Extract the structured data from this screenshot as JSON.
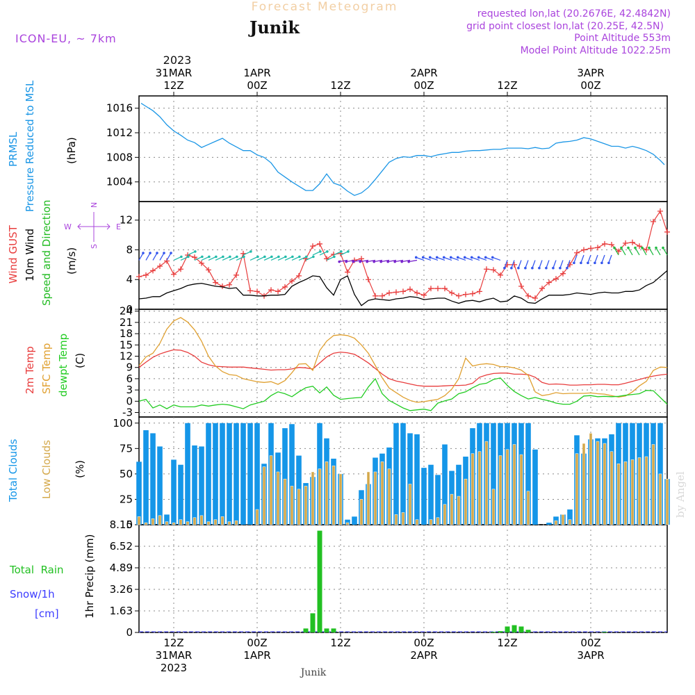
{
  "header": {
    "supertitle": "Forecast Meteogram",
    "location": "Junik",
    "model": "ICON-EU,  ~ 7km",
    "requested": "requested lon,lat (20.2676E, 42.4842N)",
    "grid": "grid point closest lon,lat (20.25E, 42.5N)",
    "point_alt": "Point Altitude 553m",
    "model_alt": "Model Point Altitude 1022.25m",
    "watermark": "by Angel",
    "footer": "Junik"
  },
  "colors": {
    "pressure": "#1a96e6",
    "gust": "#e83c3c",
    "wind": "#000000",
    "dir_label": "#22bb22",
    "t2m": "#e83c3c",
    "sfc": "#e0a030",
    "dew": "#22cc22",
    "total_clouds": "#1596e8",
    "low_clouds": "#d4a84a",
    "rain": "#22c022",
    "snow": "#3b3bff",
    "axes_lbl": "#aa44dd"
  },
  "time_axis": {
    "top_year": "2023",
    "labels": [
      {
        "hour": 12,
        "l1": "31MAR",
        "l2": "12Z"
      },
      {
        "hour": 24,
        "l1": "1APR",
        "l2": "00Z"
      },
      {
        "hour": 36,
        "l1": "",
        "l2": "12Z"
      },
      {
        "hour": 48,
        "l1": "2APR",
        "l2": "00Z"
      },
      {
        "hour": 60,
        "l1": "",
        "l2": "12Z"
      },
      {
        "hour": 72,
        "l1": "3APR",
        "l2": "00Z"
      }
    ],
    "bottom": [
      {
        "hour": 12,
        "l1": "12Z",
        "l2": "31MAR",
        "l3": "2023"
      },
      {
        "hour": 24,
        "l1": "00Z",
        "l2": "1APR",
        "l3": ""
      },
      {
        "hour": 36,
        "l1": "12Z",
        "l2": "",
        "l3": ""
      },
      {
        "hour": 48,
        "l1": "00Z",
        "l2": "2APR",
        "l3": ""
      },
      {
        "hour": 60,
        "l1": "12Z",
        "l2": "",
        "l3": ""
      },
      {
        "hour": 72,
        "l1": "00Z",
        "l2": "3APR",
        "l3": ""
      }
    ],
    "start_hour": 7,
    "end_hour": 83
  },
  "panel_labels": {
    "p1": [
      "PRMSL",
      "Pressure Reduced to MSL",
      "(hPa)"
    ],
    "p2": [
      "Wind GUST",
      "10m Wind",
      "Speed and Direction",
      "(m/s)"
    ],
    "p2_compass": [
      "N",
      "E",
      "S",
      "W"
    ],
    "p3": [
      "2m Temp",
      "SFC Temp",
      "dewpt Temp",
      "(C)"
    ],
    "p4": [
      "Total Clouds",
      "Low Clouds",
      "(%)"
    ],
    "p5": [
      "Total  Rain",
      "Snow/1h",
      "[cm]",
      "1hr Precip (mm)"
    ]
  },
  "chart_data": [
    {
      "type": "line",
      "title": "PRMSL Pressure Reduced to MSL",
      "ylabel": "hPa",
      "ylim": [
        1000.8,
        1018
      ],
      "yticks": [
        1004,
        1008,
        1012,
        1016
      ],
      "x": [
        7.3,
        8,
        9,
        10,
        11,
        12,
        13,
        14,
        15,
        16,
        17,
        18,
        19,
        20,
        21,
        22,
        23,
        24,
        25,
        26,
        27,
        28,
        29,
        30,
        31,
        32,
        33,
        34,
        35,
        36,
        37,
        38,
        39,
        40,
        41,
        42,
        43,
        44,
        45,
        46,
        47,
        48,
        49,
        50,
        51,
        52,
        53,
        54,
        55,
        56,
        57,
        58,
        59,
        60,
        61,
        62,
        63,
        64,
        65,
        66,
        67,
        68,
        69,
        70,
        71,
        72,
        73,
        74,
        75,
        76,
        77,
        78,
        79,
        80,
        81,
        82,
        82.6
      ],
      "values": [
        1016.8,
        1016.3,
        1015.6,
        1014.6,
        1013.3,
        1012.3,
        1011.6,
        1010.8,
        1010.4,
        1009.6,
        1010.1,
        1010.6,
        1011.1,
        1010.3,
        1009.7,
        1009.1,
        1009.1,
        1008.4,
        1008.0,
        1007.1,
        1005.6,
        1004.8,
        1004.0,
        1003.3,
        1002.6,
        1002.6,
        1003.7,
        1005.3,
        1003.8,
        1003.4,
        1002.5,
        1001.8,
        1002.2,
        1003.1,
        1004.4,
        1005.8,
        1007.2,
        1007.8,
        1008.1,
        1008.0,
        1008.3,
        1008.3,
        1008.1,
        1008.4,
        1008.6,
        1008.8,
        1008.8,
        1009.0,
        1009.1,
        1009.1,
        1009.2,
        1009.3,
        1009.3,
        1009.5,
        1009.5,
        1009.5,
        1009.4,
        1009.6,
        1009.4,
        1009.5,
        1010.3,
        1010.5,
        1010.6,
        1010.8,
        1011.2,
        1011.0,
        1010.6,
        1010.2,
        1009.8,
        1009.8,
        1009.5,
        1009.8,
        1009.5,
        1009.1,
        1008.5,
        1007.5,
        1006.8
      ]
    },
    {
      "type": "line",
      "title": "Wind GUST / 10m Wind Speed and Direction",
      "ylabel": "m/s",
      "ylim": [
        0,
        14.5
      ],
      "yticks": [
        0,
        4,
        8,
        12
      ],
      "x": [
        7,
        8,
        9,
        10,
        11,
        12,
        13,
        14,
        15,
        16,
        17,
        18,
        19,
        20,
        21,
        22,
        23,
        24,
        25,
        26,
        27,
        28,
        29,
        30,
        31,
        32,
        33,
        34,
        35,
        36,
        37,
        38,
        39,
        40,
        41,
        42,
        43,
        44,
        45,
        46,
        47,
        48,
        49,
        50,
        51,
        52,
        53,
        54,
        55,
        56,
        57,
        58,
        59,
        60,
        61,
        62,
        63,
        64,
        65,
        66,
        67,
        68,
        69,
        70,
        71,
        72,
        73,
        74,
        75,
        76,
        77,
        78,
        79,
        80,
        81,
        82,
        83
      ],
      "series": [
        {
          "name": "Wind GUST",
          "values": [
            4.4,
            4.6,
            5.2,
            5.8,
            6.5,
            4.7,
            5.4,
            7.3,
            7.0,
            6.2,
            5.3,
            3.6,
            3.1,
            3.3,
            4.6,
            7.5,
            2.5,
            2.4,
            1.8,
            2.6,
            2.4,
            3.0,
            3.8,
            4.5,
            6.8,
            8.5,
            8.8,
            6.8,
            7.4,
            7.5,
            5.0,
            6.6,
            6.8,
            4.0,
            1.8,
            1.8,
            2.2,
            2.3,
            2.4,
            2.7,
            2.2,
            1.9,
            2.8,
            2.8,
            2.8,
            2.2,
            1.8,
            2.0,
            2.1,
            2.4,
            5.4,
            5.3,
            4.6,
            6.0,
            6.0,
            3.1,
            1.8,
            1.5,
            2.8,
            3.6,
            4.1,
            4.8,
            6.0,
            7.6,
            8.0,
            8.2,
            8.3,
            8.8,
            8.7,
            7.8,
            8.9,
            9.0,
            8.5,
            8.0,
            11.8,
            13.2,
            10.4
          ]
        },
        {
          "name": "10m Wind",
          "values": [
            1.4,
            1.5,
            1.7,
            1.7,
            2.2,
            2.5,
            2.8,
            3.2,
            3.4,
            3.5,
            3.3,
            3.1,
            3.0,
            2.8,
            2.9,
            1.9,
            1.9,
            1.8,
            1.8,
            1.9,
            1.9,
            2.0,
            3.1,
            3.6,
            4.0,
            4.5,
            4.4,
            2.9,
            1.9,
            4.0,
            4.5,
            2.0,
            0.5,
            1.2,
            1.4,
            1.3,
            1.2,
            1.4,
            1.5,
            1.7,
            1.6,
            1.3,
            1.4,
            1.5,
            1.5,
            1.1,
            0.8,
            1.1,
            1.2,
            1.0,
            1.3,
            1.5,
            1.0,
            1.1,
            1.8,
            1.5,
            0.9,
            0.8,
            1.4,
            1.9,
            1.9,
            1.9,
            2.0,
            2.2,
            2.1,
            2.0,
            2.2,
            2.3,
            2.2,
            2.2,
            2.4,
            2.4,
            2.6,
            3.2,
            3.6,
            4.4,
            5.2
          ]
        }
      ]
    },
    {
      "type": "line",
      "title": "2m Temp / SFC Temp / dewpt Temp",
      "ylabel": "C",
      "ylim": [
        -4.2,
        24.5
      ],
      "yticks": [
        -3,
        0,
        3,
        6,
        9,
        12,
        15,
        18,
        21,
        24
      ],
      "x": [
        7,
        8,
        9,
        10,
        11,
        12,
        13,
        14,
        15,
        16,
        17,
        18,
        19,
        20,
        21,
        22,
        23,
        24,
        25,
        26,
        27,
        28,
        29,
        30,
        31,
        32,
        33,
        34,
        35,
        36,
        37,
        38,
        39,
        40,
        41,
        42,
        43,
        44,
        45,
        46,
        47,
        48,
        49,
        50,
        51,
        52,
        53,
        54,
        55,
        56,
        57,
        58,
        59,
        60,
        61,
        62,
        63,
        64,
        65,
        66,
        67,
        68,
        69,
        70,
        71,
        72,
        73,
        74,
        75,
        76,
        77,
        78,
        79,
        80,
        81,
        82,
        83
      ],
      "series": [
        {
          "name": "2m Temp",
          "values": [
            9.0,
            10.4,
            11.7,
            12.6,
            13.2,
            13.7,
            13.6,
            13.0,
            12.0,
            10.4,
            9.7,
            9.3,
            9.2,
            9.1,
            9.1,
            9.1,
            8.9,
            8.7,
            8.5,
            8.3,
            8.4,
            8.4,
            8.6,
            9.0,
            8.9,
            8.6,
            10.2,
            11.8,
            12.8,
            13.1,
            12.9,
            12.5,
            11.4,
            10.2,
            8.7,
            7.2,
            6.0,
            5.4,
            5.0,
            4.6,
            4.2,
            4.0,
            4.0,
            4.0,
            4.1,
            4.2,
            4.2,
            4.3,
            4.8,
            6.4,
            7.0,
            7.4,
            7.5,
            7.5,
            7.2,
            7.2,
            7.1,
            6.4,
            5.0,
            4.5,
            4.6,
            4.5,
            4.3,
            4.3,
            4.4,
            4.4,
            4.5,
            4.5,
            4.4,
            4.4,
            4.8,
            5.3,
            5.8,
            6.3,
            6.7,
            7.0,
            7.2
          ]
        },
        {
          "name": "SFC Temp",
          "values": [
            9.5,
            11.8,
            12.8,
            15.4,
            19.2,
            21.4,
            22.3,
            21.1,
            19.0,
            16.0,
            12.0,
            9.4,
            7.9,
            7.1,
            6.9,
            6.0,
            5.6,
            5.2,
            5.0,
            5.2,
            4.5,
            5.5,
            7.6,
            9.9,
            10.0,
            8.2,
            13.5,
            16.0,
            17.5,
            17.7,
            17.5,
            16.8,
            15.0,
            12.8,
            9.5,
            6.2,
            3.5,
            2.3,
            1.1,
            0.2,
            -0.3,
            -0.1,
            0.2,
            0.5,
            1.5,
            3.2,
            6.0,
            11.5,
            9.4,
            9.8,
            10.0,
            9.8,
            9.2,
            9.2,
            8.9,
            8.3,
            6.9,
            2.5,
            1.5,
            1.8,
            2.3,
            2.0,
            2.1,
            2.1,
            2.1,
            2.2,
            2.0,
            1.9,
            1.5,
            1.1,
            1.4,
            2.5,
            4.1,
            5.3,
            8.2,
            9.1,
            9.0
          ]
        },
        {
          "name": "dewpt Temp",
          "values": [
            0.0,
            0.5,
            -1.8,
            -1.0,
            -2.0,
            -1.0,
            -1.5,
            -1.5,
            -1.5,
            -1.0,
            -1.3,
            -1.0,
            -0.8,
            -1.0,
            -1.5,
            -2.0,
            -1.0,
            -0.5,
            0.0,
            1.5,
            2.5,
            2.0,
            1.2,
            2.5,
            3.6,
            4.0,
            2.2,
            3.8,
            1.6,
            0.5,
            0.7,
            0.9,
            1.0,
            3.8,
            6.0,
            2.0,
            0.2,
            -0.8,
            -1.8,
            -2.5,
            -2.3,
            -2.1,
            -2.5,
            -0.5,
            0.1,
            0.6,
            2.0,
            2.5,
            3.6,
            4.5,
            4.8,
            5.8,
            6.2,
            4.2,
            2.6,
            1.5,
            0.6,
            1.0,
            0.5,
            0.1,
            -0.5,
            -0.8,
            -0.8,
            0.0,
            1.4,
            1.5,
            1.2,
            1.3,
            1.2,
            1.3,
            1.6,
            1.8,
            2.0,
            2.9,
            2.8,
            1.0,
            -0.8
          ]
        }
      ]
    },
    {
      "type": "bar",
      "title": "Total Clouds / Low Clouds",
      "ylabel": "%",
      "ylim": [
        0,
        106
      ],
      "yticks": [
        0,
        25,
        50,
        75,
        100
      ],
      "x": [
        7,
        8,
        9,
        10,
        11,
        12,
        13,
        14,
        15,
        16,
        17,
        18,
        19,
        20,
        21,
        22,
        23,
        24,
        25,
        26,
        27,
        28,
        29,
        30,
        31,
        32,
        33,
        34,
        35,
        36,
        37,
        38,
        39,
        40,
        41,
        42,
        43,
        44,
        45,
        46,
        47,
        48,
        49,
        50,
        51,
        52,
        53,
        54,
        55,
        56,
        57,
        58,
        59,
        60,
        61,
        62,
        63,
        64,
        65,
        66,
        67,
        68,
        69,
        70,
        71,
        72,
        73,
        74,
        75,
        76,
        77,
        78,
        79,
        80,
        81,
        82,
        83
      ],
      "series": [
        {
          "name": "Total Clouds",
          "values": [
            62,
            93,
            90,
            77,
            10,
            64,
            59,
            100,
            78,
            77,
            100,
            100,
            100,
            100,
            100,
            100,
            100,
            100,
            60,
            100,
            71,
            95,
            99,
            68,
            41,
            47,
            100,
            85,
            65,
            50,
            5,
            8,
            34,
            40,
            66,
            70,
            76,
            100,
            100,
            90,
            89,
            56,
            59,
            49,
            79,
            53,
            59,
            67,
            95,
            100,
            100,
            100,
            100,
            100,
            100,
            100,
            100,
            74,
            0,
            2,
            8,
            10,
            15,
            88,
            70,
            84,
            85,
            85,
            89,
            100,
            100,
            100,
            100,
            100,
            100,
            100,
            45
          ]
        },
        {
          "name": "Low Clouds",
          "values": [
            8,
            2,
            6,
            9,
            3,
            2,
            5,
            3,
            7,
            9,
            3,
            5,
            8,
            3,
            4,
            0,
            0,
            15,
            57,
            68,
            52,
            45,
            38,
            35,
            38,
            52,
            55,
            62,
            58,
            50,
            2,
            0,
            25,
            52,
            52,
            62,
            55,
            10,
            12,
            40,
            5,
            0,
            5,
            7,
            20,
            30,
            28,
            45,
            70,
            72,
            82,
            35,
            68,
            74,
            79,
            69,
            33,
            0,
            0,
            0,
            4,
            10,
            5,
            70,
            80,
            90,
            82,
            80,
            72,
            60,
            62,
            64,
            66,
            67,
            79,
            50,
            45
          ]
        }
      ]
    },
    {
      "type": "bar",
      "title": "1hr Precip (mm)",
      "ylabel": "1hr Precip (mm)",
      "ylim": [
        0,
        8.15
      ],
      "yticks": [
        0,
        1.63,
        3.26,
        4.89,
        6.52,
        8.15
      ],
      "x": [
        31,
        32,
        33,
        34,
        35,
        58,
        59,
        60,
        61,
        62,
        63,
        74
      ],
      "series": [
        {
          "name": "Total Rain",
          "values": [
            0.3,
            1.45,
            7.7,
            0.3,
            0.3,
            0.05,
            0.1,
            0.45,
            0.55,
            0.45,
            0.2,
            0.05
          ]
        }
      ]
    }
  ]
}
